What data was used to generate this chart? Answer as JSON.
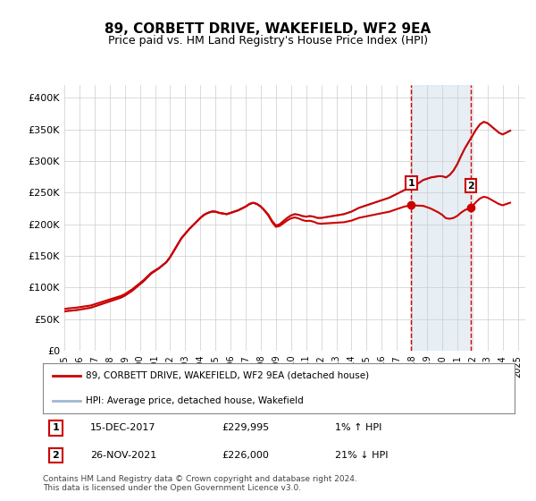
{
  "title": "89, CORBETT DRIVE, WAKEFIELD, WF2 9EA",
  "subtitle": "Price paid vs. HM Land Registry's House Price Index (HPI)",
  "ylabel_ticks": [
    "£0",
    "£50K",
    "£100K",
    "£150K",
    "£200K",
    "£250K",
    "£300K",
    "£350K",
    "£400K"
  ],
  "ytick_values": [
    0,
    50000,
    100000,
    150000,
    200000,
    250000,
    300000,
    350000,
    400000
  ],
  "ylim": [
    0,
    420000
  ],
  "xlim_start": 1995.0,
  "xlim_end": 2025.5,
  "marker1_x": 2017.96,
  "marker1_y": 229995,
  "marker1_label": "1",
  "marker1_date": "15-DEC-2017",
  "marker1_price": "£229,995",
  "marker1_hpi": "1% ↑ HPI",
  "marker2_x": 2021.9,
  "marker2_y": 226000,
  "marker2_label": "2",
  "marker2_date": "26-NOV-2021",
  "marker2_price": "£226,000",
  "marker2_hpi": "21% ↓ HPI",
  "line1_color": "#cc0000",
  "line2_color": "#a0b8d0",
  "background_color": "#ffffff",
  "grid_color": "#cccccc",
  "shade_color": "#dde8f0",
  "legend1": "89, CORBETT DRIVE, WAKEFIELD, WF2 9EA (detached house)",
  "legend2": "HPI: Average price, detached house, Wakefield",
  "footer": "Contains HM Land Registry data © Crown copyright and database right 2024.\nThis data is licensed under the Open Government Licence v3.0.",
  "hpi_data": {
    "years": [
      1995.0,
      1995.25,
      1995.5,
      1995.75,
      1996.0,
      1996.25,
      1996.5,
      1996.75,
      1997.0,
      1997.25,
      1997.5,
      1997.75,
      1998.0,
      1998.25,
      1998.5,
      1998.75,
      1999.0,
      1999.25,
      1999.5,
      1999.75,
      2000.0,
      2000.25,
      2000.5,
      2000.75,
      2001.0,
      2001.25,
      2001.5,
      2001.75,
      2002.0,
      2002.25,
      2002.5,
      2002.75,
      2003.0,
      2003.25,
      2003.5,
      2003.75,
      2004.0,
      2004.25,
      2004.5,
      2004.75,
      2005.0,
      2005.25,
      2005.5,
      2005.75,
      2006.0,
      2006.25,
      2006.5,
      2006.75,
      2007.0,
      2007.25,
      2007.5,
      2007.75,
      2008.0,
      2008.25,
      2008.5,
      2008.75,
      2009.0,
      2009.25,
      2009.5,
      2009.75,
      2010.0,
      2010.25,
      2010.5,
      2010.75,
      2011.0,
      2011.25,
      2011.5,
      2011.75,
      2012.0,
      2012.25,
      2012.5,
      2012.75,
      2013.0,
      2013.25,
      2013.5,
      2013.75,
      2014.0,
      2014.25,
      2014.5,
      2014.75,
      2015.0,
      2015.25,
      2015.5,
      2015.75,
      2016.0,
      2016.25,
      2016.5,
      2016.75,
      2017.0,
      2017.25,
      2017.5,
      2017.75,
      2018.0,
      2018.25,
      2018.5,
      2018.75,
      2019.0,
      2019.25,
      2019.5,
      2019.75,
      2020.0,
      2020.25,
      2020.5,
      2020.75,
      2021.0,
      2021.25,
      2021.5,
      2021.75,
      2022.0,
      2022.25,
      2022.5,
      2022.75,
      2023.0,
      2023.25,
      2023.5,
      2023.75,
      2024.0,
      2024.25,
      2024.5
    ],
    "values": [
      62000,
      63000,
      63500,
      64000,
      65000,
      66000,
      67000,
      68000,
      70000,
      72000,
      74000,
      76000,
      78000,
      80000,
      82000,
      84000,
      87000,
      91000,
      95000,
      100000,
      105000,
      110000,
      116000,
      122000,
      126000,
      130000,
      135000,
      140000,
      148000,
      158000,
      168000,
      178000,
      185000,
      192000,
      198000,
      204000,
      210000,
      215000,
      218000,
      220000,
      220000,
      218000,
      217000,
      216000,
      218000,
      220000,
      222000,
      225000,
      228000,
      232000,
      234000,
      232000,
      228000,
      222000,
      215000,
      205000,
      198000,
      200000,
      205000,
      210000,
      214000,
      216000,
      215000,
      213000,
      212000,
      213000,
      212000,
      210000,
      210000,
      211000,
      212000,
      213000,
      214000,
      215000,
      216000,
      218000,
      220000,
      223000,
      226000,
      228000,
      230000,
      232000,
      234000,
      236000,
      238000,
      240000,
      242000,
      245000,
      248000,
      251000,
      254000,
      256000,
      258000,
      262000,
      266000,
      270000,
      272000,
      274000,
      275000,
      276000,
      276000,
      274000,
      278000,
      285000,
      295000,
      308000,
      320000,
      330000,
      340000,
      350000,
      358000,
      362000,
      360000,
      355000,
      350000,
      345000,
      342000,
      345000,
      348000
    ]
  },
  "property_data": {
    "years": [
      1995.75,
      2001.75,
      2008.0,
      2017.96,
      2021.9
    ],
    "values": [
      68000,
      140000,
      228000,
      229995,
      226000
    ]
  }
}
